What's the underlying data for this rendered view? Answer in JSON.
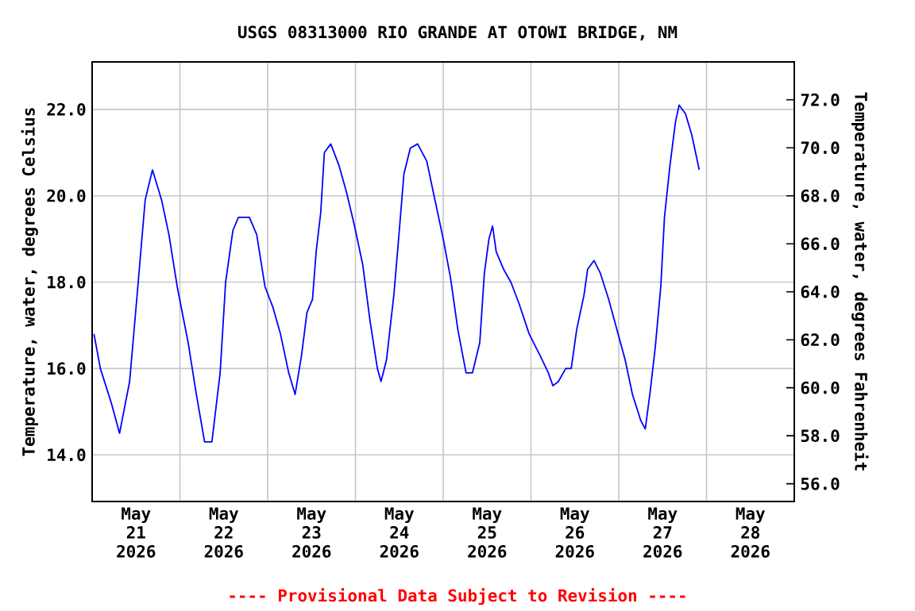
{
  "chart_data": {
    "type": "line",
    "title": "USGS 08313000 RIO GRANDE AT OTOWI BRIDGE, NM",
    "ylabel": "Temperature, water, degrees Celsius",
    "y2label": "Temperature, water, degrees Fahrenheit",
    "annotations": [
      "---- Provisional Data Subject to Revision ----"
    ],
    "color": "#0000ff",
    "grid": true,
    "marker": "none",
    "line_style": "solid",
    "xlim": [
      "2026-05-21T00:00",
      "2026-05-29T00:00"
    ],
    "xticks": [
      {
        "value": "2026-05-21T12:00",
        "label": "May 21 2026"
      },
      {
        "value": "2026-05-22T12:00",
        "label": "May 22 2026"
      },
      {
        "value": "2026-05-23T12:00",
        "label": "May 23 2026"
      },
      {
        "value": "2026-05-24T12:00",
        "label": "May 24 2026"
      },
      {
        "value": "2026-05-25T12:00",
        "label": "May 25 2026"
      },
      {
        "value": "2026-05-26T12:00",
        "label": "May 26 2026"
      },
      {
        "value": "2026-05-27T12:00",
        "label": "May 27 2026"
      },
      {
        "value": "2026-05-28T12:00",
        "label": "May 28 2026"
      },
      {
        "value": "2026-05-22T00:00",
        "label": null
      },
      {
        "value": "2026-05-23T00:00",
        "label": null
      },
      {
        "value": "2026-05-24T00:00",
        "label": null
      },
      {
        "value": "2026-05-25T00:00",
        "label": null
      },
      {
        "value": "2026-05-26T00:00",
        "label": null
      },
      {
        "value": "2026-05-27T00:00",
        "label": null
      },
      {
        "value": "2026-05-28T00:00",
        "label": null
      }
    ],
    "ylim": [
      12.92,
      23.1
    ],
    "yticks": [
      {
        "value": 14,
        "label": "14.0"
      },
      {
        "value": 16,
        "label": "16.0"
      },
      {
        "value": 18,
        "label": "18.0"
      },
      {
        "value": 20,
        "label": "20.0"
      },
      {
        "value": 22,
        "label": "22.0"
      }
    ],
    "y2lim": [
      55.26,
      73.58
    ],
    "y2ticks": [
      {
        "value": 56,
        "label": "56.0"
      },
      {
        "value": 58,
        "label": "58.0"
      },
      {
        "value": 60,
        "label": "60.0"
      },
      {
        "value": 62,
        "label": "62.0"
      },
      {
        "value": 64,
        "label": "64.0"
      },
      {
        "value": 66,
        "label": "66.0"
      },
      {
        "value": 68,
        "label": "68.0"
      },
      {
        "value": 70,
        "label": "70.0"
      },
      {
        "value": 72,
        "label": "72.0"
      }
    ],
    "x": [
      "2026-05-21T00:30",
      "2026-05-21T02:15",
      "2026-05-21T05:15",
      "2026-05-21T07:30",
      "2026-05-21T10:15",
      "2026-05-21T12:30",
      "2026-05-21T14:30",
      "2026-05-21T16:30",
      "2026-05-21T19:00",
      "2026-05-21T21:00",
      "2026-05-21T23:15",
      "2026-05-22T02:15",
      "2026-05-22T04:30",
      "2026-05-22T06:45",
      "2026-05-22T08:45",
      "2026-05-22T11:00",
      "2026-05-22T12:30",
      "2026-05-22T14:30",
      "2026-05-22T16:00",
      "2026-05-22T19:00",
      "2026-05-22T21:00",
      "2026-05-22T23:15",
      "2026-05-23T01:30",
      "2026-05-23T03:30",
      "2026-05-23T05:45",
      "2026-05-23T07:30",
      "2026-05-23T09:15",
      "2026-05-23T10:45",
      "2026-05-23T12:15",
      "2026-05-23T13:15",
      "2026-05-23T14:30",
      "2026-05-23T15:30",
      "2026-05-23T17:15",
      "2026-05-23T19:30",
      "2026-05-23T21:30",
      "2026-05-23T23:45",
      "2026-05-24T02:00",
      "2026-05-24T04:00",
      "2026-05-24T06:00",
      "2026-05-24T07:00",
      "2026-05-24T08:30",
      "2026-05-24T10:30",
      "2026-05-24T12:00",
      "2026-05-24T13:15",
      "2026-05-24T15:00",
      "2026-05-24T17:00",
      "2026-05-24T19:30",
      "2026-05-24T21:30",
      "2026-05-25T00:00",
      "2026-05-25T02:00",
      "2026-05-25T04:00",
      "2026-05-25T06:15",
      "2026-05-25T08:00",
      "2026-05-25T10:00",
      "2026-05-25T11:15",
      "2026-05-25T12:30",
      "2026-05-25T13:30",
      "2026-05-25T14:30",
      "2026-05-25T16:30",
      "2026-05-25T18:30",
      "2026-05-25T20:45",
      "2026-05-25T23:30",
      "2026-05-26T02:30",
      "2026-05-26T04:45",
      "2026-05-26T06:00",
      "2026-05-26T07:30",
      "2026-05-26T09:30",
      "2026-05-26T11:00",
      "2026-05-26T12:30",
      "2026-05-26T14:30",
      "2026-05-26T15:30",
      "2026-05-26T17:15",
      "2026-05-26T19:00",
      "2026-05-26T21:15",
      "2026-05-26T23:30",
      "2026-05-27T01:45",
      "2026-05-27T03:45",
      "2026-05-27T06:00",
      "2026-05-27T07:15",
      "2026-05-27T08:30",
      "2026-05-27T10:00",
      "2026-05-27T11:30",
      "2026-05-27T12:30",
      "2026-05-27T14:00",
      "2026-05-27T15:30",
      "2026-05-27T16:30",
      "2026-05-27T18:15",
      "2026-05-27T20:00",
      "2026-05-27T21:00",
      "2026-05-27T22:00"
    ],
    "values": [
      16.8,
      16.0,
      15.2,
      14.5,
      15.7,
      17.9,
      19.9,
      20.6,
      19.9,
      19.1,
      17.9,
      16.6,
      15.4,
      14.3,
      14.3,
      15.9,
      18.0,
      19.2,
      19.5,
      19.5,
      19.1,
      17.9,
      17.4,
      16.8,
      15.9,
      15.4,
      16.3,
      17.3,
      17.6,
      18.7,
      19.6,
      21.0,
      21.2,
      20.7,
      20.1,
      19.3,
      18.4,
      17.1,
      16.0,
      15.7,
      16.2,
      17.7,
      19.2,
      20.5,
      21.1,
      21.2,
      20.8,
      20.0,
      19.0,
      18.1,
      16.9,
      15.9,
      15.9,
      16.6,
      18.2,
      19.0,
      19.3,
      18.7,
      18.3,
      18.0,
      17.5,
      16.8,
      16.3,
      15.9,
      15.6,
      15.7,
      16.0,
      16.0,
      16.9,
      17.7,
      18.3,
      18.5,
      18.2,
      17.6,
      16.9,
      16.2,
      15.4,
      14.8,
      14.6,
      15.4,
      16.5,
      17.9,
      19.5,
      20.7,
      21.7,
      22.1,
      21.9,
      21.4,
      21.0,
      20.6
    ]
  }
}
